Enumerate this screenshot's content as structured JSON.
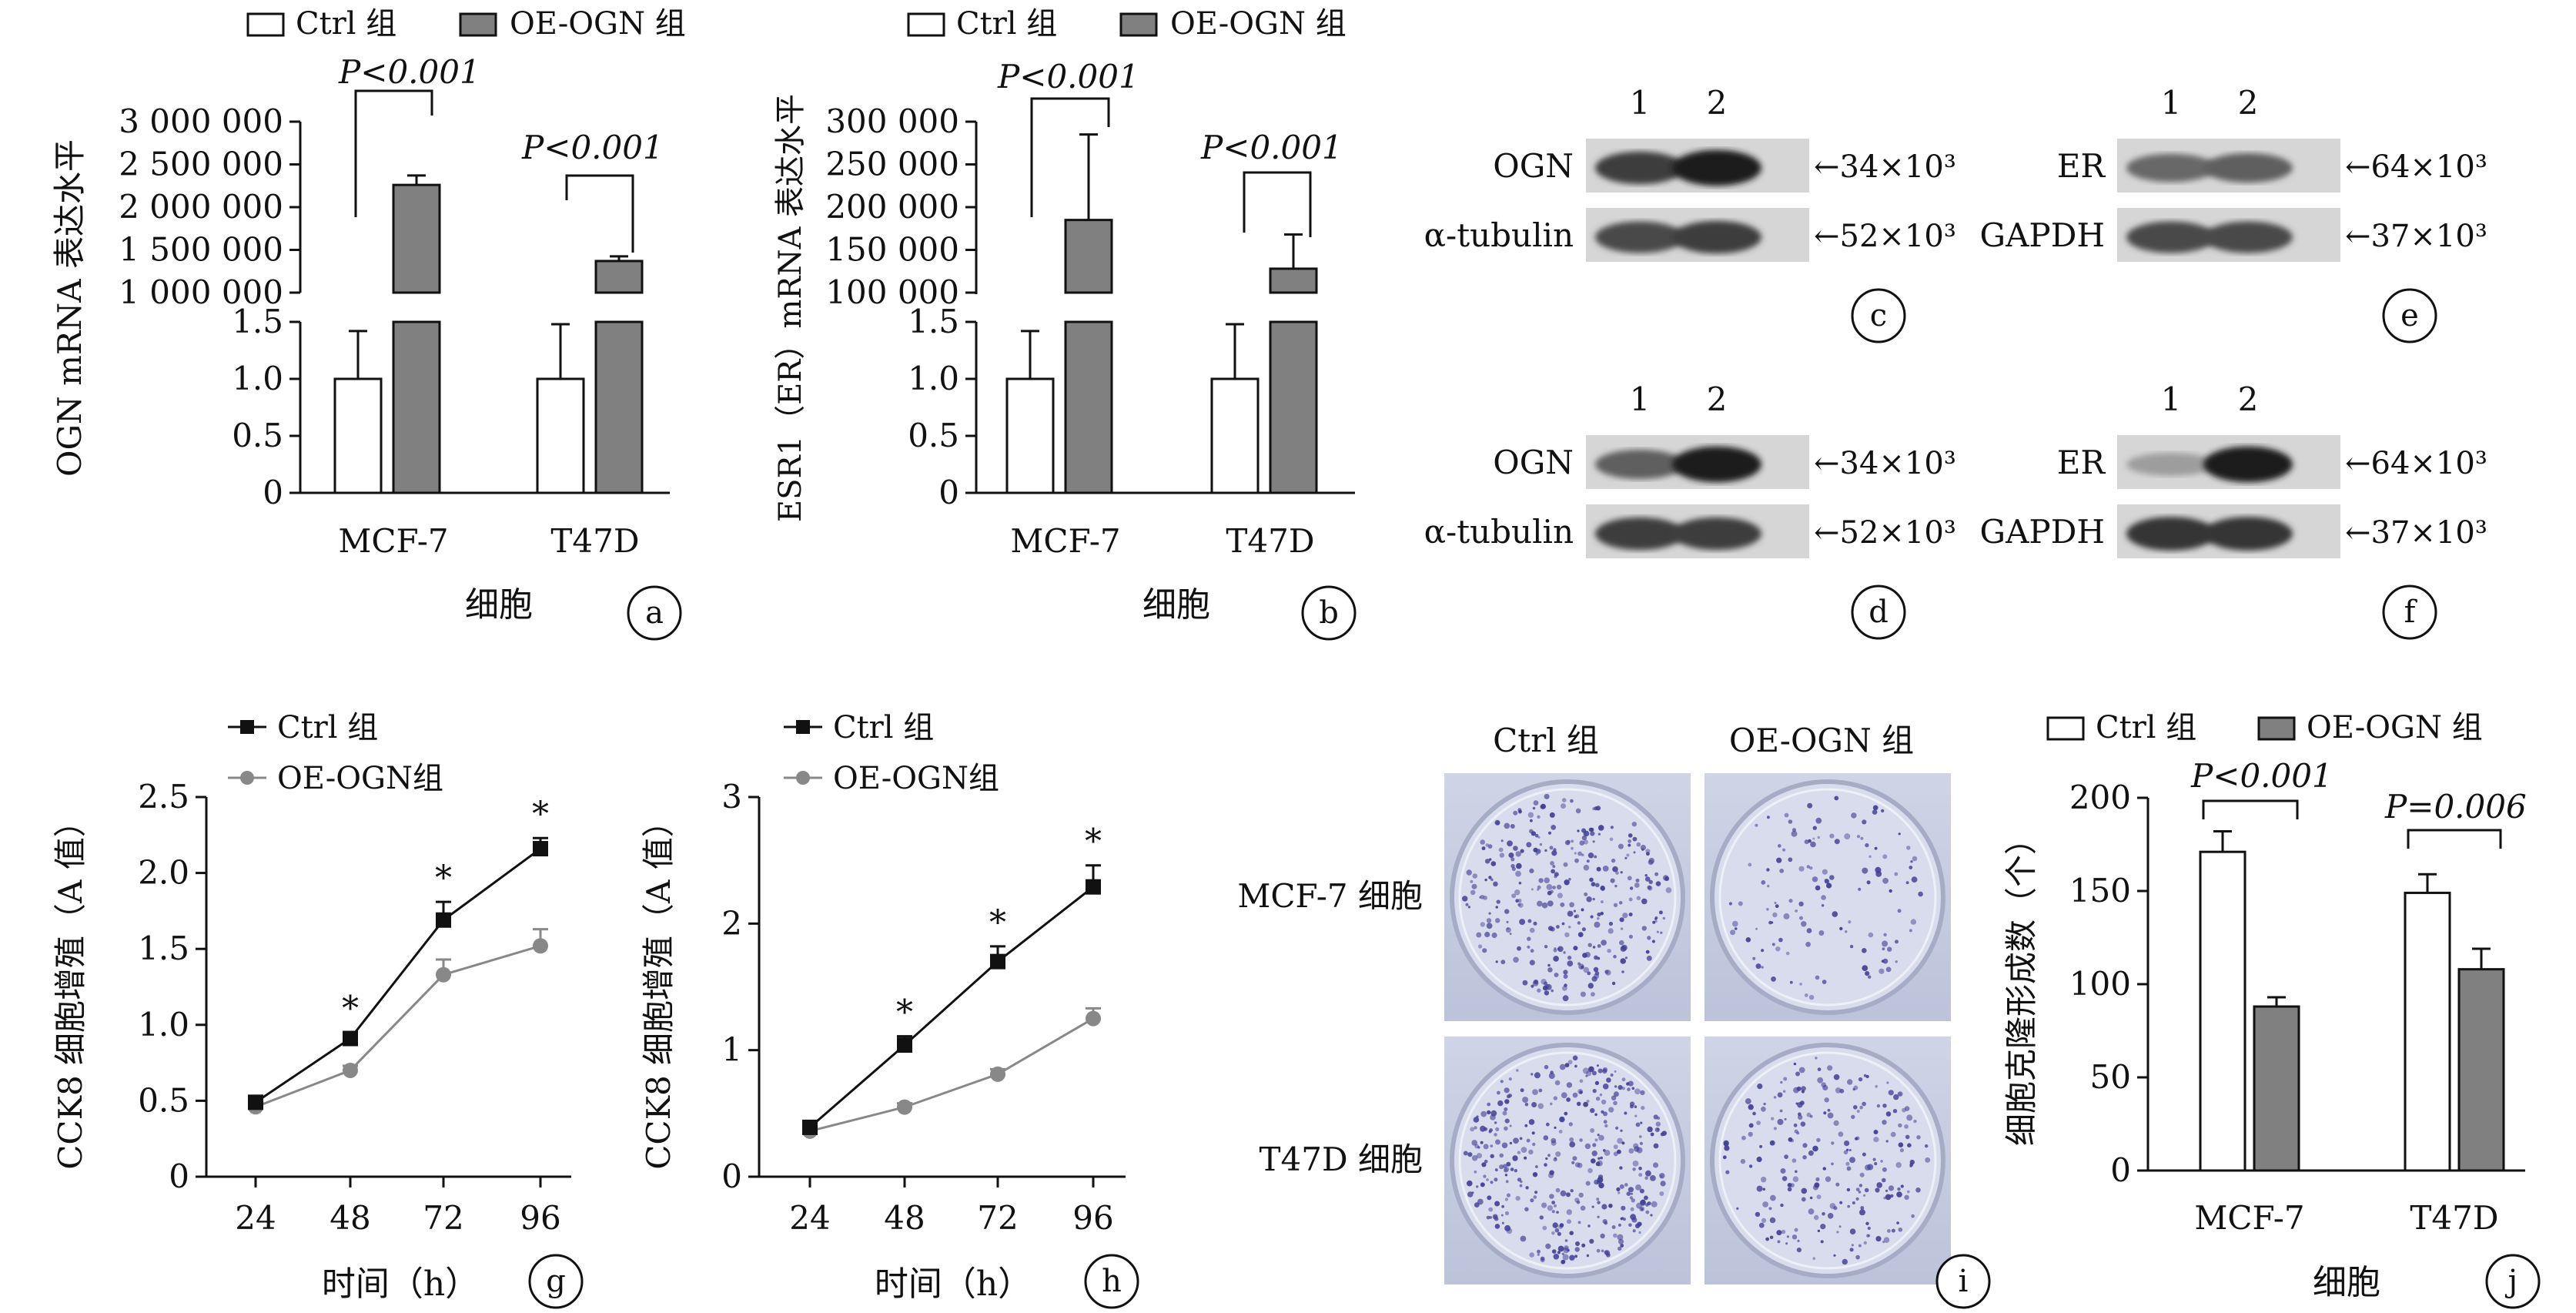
{
  "panel_labels": {
    "a": "a",
    "b": "b",
    "c": "c",
    "d": "d",
    "e": "e",
    "f": "f",
    "g": "g",
    "h": "h",
    "i": "i",
    "j": "j"
  },
  "colors": {
    "ctrl_fill": "#ffffff",
    "oe_fill": "#808080",
    "ctrl_line": "#111111",
    "oe_line": "#888888",
    "plate_bg": "#c7ccde",
    "colony": "#3f3f95"
  },
  "chart_data": [
    {
      "id": "a",
      "type": "bar",
      "legend": [
        "Ctrl 组",
        "OE-OGN 组"
      ],
      "categories": [
        "MCF-7",
        "T47D"
      ],
      "xlabel": "细胞",
      "ylabel": "OGN mRNA 表达水平",
      "y_lower_ticks": [
        "0",
        "0.5",
        "1.0",
        "1.5"
      ],
      "y_upper_ticks": [
        "1 000 000",
        "1 500 000",
        "2 000 000",
        "2 500 000",
        "3 000 000"
      ],
      "axis_break": true,
      "series": [
        {
          "name": "Ctrl 组",
          "values": [
            1.0,
            1.0
          ],
          "errors": [
            0.42,
            0.48
          ]
        },
        {
          "name": "OE-OGN 组",
          "values": [
            2260000,
            1370000
          ],
          "errors": [
            110000,
            55000
          ]
        }
      ],
      "annotations": [
        "P<0.001",
        "P<0.001"
      ]
    },
    {
      "id": "b",
      "type": "bar",
      "legend": [
        "Ctrl 组",
        "OE-OGN 组"
      ],
      "categories": [
        "MCF-7",
        "T47D"
      ],
      "xlabel": "细胞",
      "ylabel": "ESR1（ER）mRNA 表达水平",
      "y_lower_ticks": [
        "0",
        "0.5",
        "1.0",
        "1.5"
      ],
      "y_upper_ticks": [
        "100 000",
        "150 000",
        "200 000",
        "250 000",
        "300 000"
      ],
      "axis_break": true,
      "series": [
        {
          "name": "Ctrl 组",
          "values": [
            1.0,
            1.0
          ],
          "errors": [
            0.42,
            0.48
          ]
        },
        {
          "name": "OE-OGN 组",
          "values": [
            185000,
            128000
          ],
          "errors": [
            100000,
            40000
          ]
        }
      ],
      "annotations": [
        "P<0.001",
        "P<0.001"
      ]
    },
    {
      "id": "g",
      "type": "line",
      "legend": [
        "Ctrl 组",
        "OE-OGN组"
      ],
      "x": [
        24,
        48,
        72,
        96
      ],
      "xlabel": "时间（h）",
      "ylabel": "CCK8 细胞增殖（A 值）",
      "ylim": [
        0,
        2.5
      ],
      "yticks": [
        "0",
        "0.5",
        "1.0",
        "1.5",
        "2.0",
        "2.5"
      ],
      "series": [
        {
          "name": "Ctrl 组",
          "values": [
            0.49,
            0.91,
            1.69,
            2.16
          ],
          "errors": [
            0.02,
            0.04,
            0.12,
            0.07
          ]
        },
        {
          "name": "OE-OGN组",
          "values": [
            0.46,
            0.7,
            1.33,
            1.52
          ],
          "errors": [
            0.02,
            0.03,
            0.1,
            0.11
          ]
        }
      ],
      "significance": [
        "*",
        "*",
        "*"
      ]
    },
    {
      "id": "h",
      "type": "line",
      "legend": [
        "Ctrl 组",
        "OE-OGN组"
      ],
      "x": [
        24,
        48,
        72,
        96
      ],
      "xlabel": "时间（h）",
      "ylabel": "CCK8 细胞增殖（A 值）",
      "ylim": [
        0,
        3
      ],
      "yticks": [
        "0",
        "1",
        "2",
        "3"
      ],
      "series": [
        {
          "name": "Ctrl 组",
          "values": [
            0.39,
            1.04,
            1.7,
            2.29
          ],
          "errors": [
            0.02,
            0.07,
            0.12,
            0.17
          ]
        },
        {
          "name": "OE-OGN组",
          "values": [
            0.36,
            0.55,
            0.81,
            1.25
          ],
          "errors": [
            0.02,
            0.03,
            0.04,
            0.08
          ]
        }
      ],
      "significance": [
        "*",
        "*",
        "*"
      ]
    },
    {
      "id": "j",
      "type": "bar",
      "legend": [
        "Ctrl 组",
        "OE-OGN 组"
      ],
      "categories": [
        "MCF-7",
        "T47D"
      ],
      "xlabel": "细胞",
      "ylabel": "细胞克隆形成数（个）",
      "ylim": [
        0,
        200
      ],
      "yticks": [
        "0",
        "50",
        "100",
        "150",
        "200"
      ],
      "series": [
        {
          "name": "Ctrl 组",
          "values": [
            171,
            149
          ],
          "errors": [
            11,
            10
          ]
        },
        {
          "name": "OE-OGN 组",
          "values": [
            88,
            108
          ],
          "errors": [
            5,
            11
          ]
        }
      ],
      "annotations": [
        "P<0.001",
        "P=0.006"
      ]
    }
  ],
  "blots": {
    "c": {
      "lanes": [
        "1",
        "2"
      ],
      "rows": [
        {
          "label": "OGN",
          "size": "←34×10³",
          "band_intensity": [
            0.8,
            0.95
          ]
        },
        {
          "label": "α-tubulin",
          "size": "←52×10³",
          "band_intensity": [
            0.75,
            0.8
          ]
        }
      ]
    },
    "d": {
      "lanes": [
        "1",
        "2"
      ],
      "rows": [
        {
          "label": "OGN",
          "size": "←34×10³",
          "band_intensity": [
            0.65,
            0.95
          ]
        },
        {
          "label": "α-tubulin",
          "size": "←52×10³",
          "band_intensity": [
            0.8,
            0.8
          ]
        }
      ]
    },
    "e": {
      "lanes": [
        "1",
        "2"
      ],
      "rows": [
        {
          "label": "ER",
          "size": "←64×10³",
          "band_intensity": [
            0.6,
            0.65
          ]
        },
        {
          "label": "GAPDH",
          "size": "←37×10³",
          "band_intensity": [
            0.75,
            0.75
          ]
        }
      ]
    },
    "f": {
      "lanes": [
        "1",
        "2"
      ],
      "rows": [
        {
          "label": "ER",
          "size": "←64×10³",
          "band_intensity": [
            0.35,
            0.95
          ]
        },
        {
          "label": "GAPDH",
          "size": "←37×10³",
          "band_intensity": [
            0.85,
            0.85
          ]
        }
      ]
    }
  },
  "colony_panel": {
    "columns": [
      "Ctrl 组",
      "OE-OGN 组"
    ],
    "rows": [
      "MCF-7 细胞",
      "T47D 细胞"
    ],
    "density": [
      [
        0.75,
        0.3
      ],
      [
        0.9,
        0.55
      ]
    ]
  }
}
